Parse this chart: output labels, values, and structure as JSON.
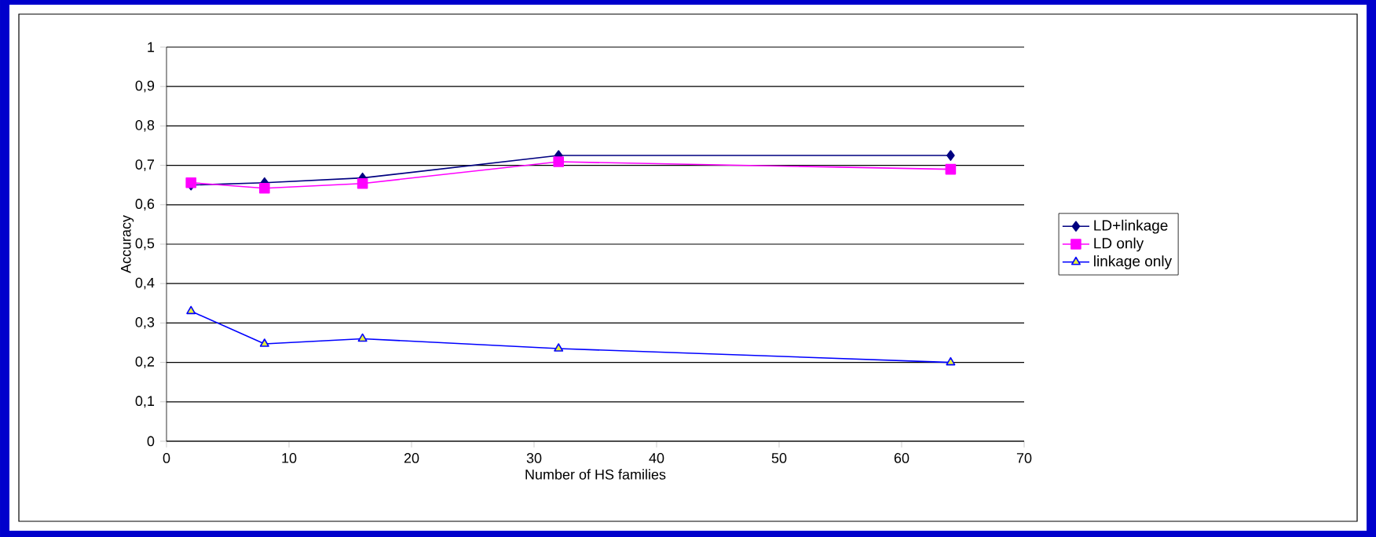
{
  "chart_data": {
    "type": "line",
    "xlabel": "Number of HS families",
    "ylabel": "Accuracy",
    "x": [
      2,
      8,
      16,
      32,
      64
    ],
    "series": [
      {
        "name": "LD+linkage",
        "color": "#000080",
        "marker": "diamond",
        "values": [
          0.65,
          0.656,
          0.668,
          0.725,
          0.725
        ]
      },
      {
        "name": "LD only",
        "color": "#ff00ff",
        "marker": "square",
        "values": [
          0.656,
          0.642,
          0.654,
          0.709,
          0.69
        ]
      },
      {
        "name": "linkage only",
        "color": "#0000ff",
        "marker": "triangle",
        "values": [
          0.33,
          0.247,
          0.26,
          0.235,
          0.2
        ]
      }
    ],
    "xlim": [
      0,
      70
    ],
    "xticks": [
      0,
      10,
      20,
      30,
      40,
      50,
      60,
      70
    ],
    "ylim": [
      0,
      1
    ],
    "yticks": [
      0,
      {
        "value": 0.1,
        "label": "0,1"
      },
      {
        "value": 0.2,
        "label": "0,2"
      },
      {
        "value": 0.3,
        "label": "0,3"
      },
      {
        "value": 0.4,
        "label": "0,4"
      },
      {
        "value": 0.5,
        "label": "0,5"
      },
      {
        "value": 0.6,
        "label": "0,6"
      },
      {
        "value": 0.7,
        "label": "0,7"
      },
      {
        "value": 0.8,
        "label": "0,8"
      },
      {
        "value": 0.9,
        "label": "0,9"
      },
      1
    ],
    "grid": "y",
    "legend": "right",
    "line_style": "solid"
  }
}
